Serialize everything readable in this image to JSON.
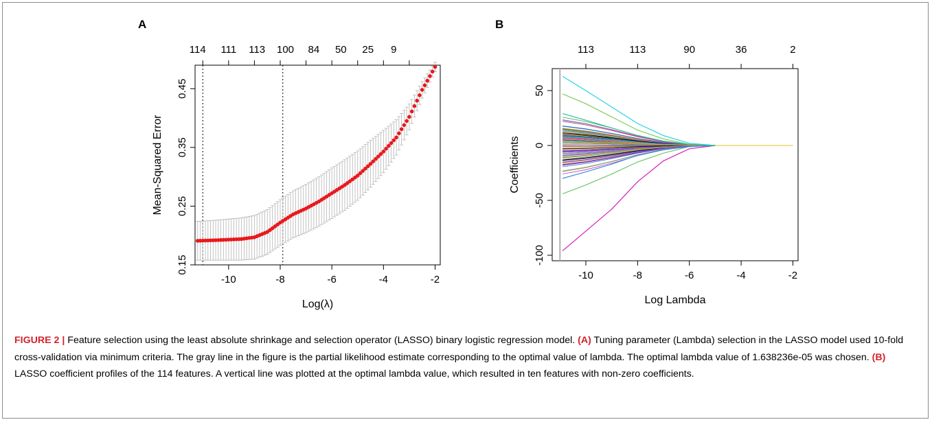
{
  "chart_data": [
    {
      "panel": "A",
      "type": "scatter",
      "xlabel": "Log(λ)",
      "ylabel": "Mean-Squared Error",
      "xlim": [
        -11.3,
        -1.8
      ],
      "ylim": [
        0.15,
        0.49
      ],
      "x_ticks": [
        -10,
        -8,
        -6,
        -4,
        -2
      ],
      "x_tick_labels": [
        "-10",
        "-8",
        "-6",
        "-4",
        "-2"
      ],
      "y_ticks": [
        0.15,
        0.25,
        0.35,
        0.45
      ],
      "y_tick_labels": [
        "0.15",
        "0.25",
        "0.35",
        "0.45"
      ],
      "top_axis_ticks": [
        -11,
        -10,
        -9,
        -8,
        -7,
        -6,
        -5,
        -4,
        -3
      ],
      "top_axis_labels": [
        "114",
        "111",
        "113",
        "100",
        "84",
        "50",
        "25",
        "9"
      ],
      "top_axis_label_x": [
        -11.2,
        -10.0,
        -8.9,
        -7.8,
        -6.7,
        -5.65,
        -4.6,
        -3.6
      ],
      "vlines": [
        -11.0,
        -7.9
      ],
      "points": {
        "x": [
          -11.2,
          -10.5,
          -10.0,
          -9.5,
          -9.0,
          -8.5,
          -8.0,
          -7.5,
          -7.0,
          -6.5,
          -6.0,
          -5.5,
          -5.0,
          -4.5,
          -4.0,
          -3.5,
          -3.0,
          -2.5,
          -2.0
        ],
        "y": [
          0.191,
          0.192,
          0.193,
          0.194,
          0.197,
          0.206,
          0.222,
          0.236,
          0.246,
          0.258,
          0.272,
          0.286,
          0.302,
          0.322,
          0.343,
          0.367,
          0.402,
          0.448,
          0.487
        ]
      },
      "error_half_width": [
        0.033,
        0.034,
        0.035,
        0.036,
        0.037,
        0.038,
        0.039,
        0.04,
        0.041,
        0.042,
        0.043,
        0.043,
        0.042,
        0.04,
        0.036,
        0.03,
        0.022,
        0.014,
        0.008
      ]
    },
    {
      "panel": "B",
      "type": "line",
      "xlabel": "Log Lambda",
      "ylabel": "Coefficients",
      "xlim": [
        -11.3,
        -1.8
      ],
      "ylim": [
        -105,
        70
      ],
      "x_ticks": [
        -10,
        -8,
        -6,
        -4,
        -2
      ],
      "x_tick_labels": [
        "-10",
        "-8",
        "-6",
        "-4",
        "-2"
      ],
      "y_ticks": [
        -100,
        -50,
        0,
        50
      ],
      "y_tick_labels": [
        "-100",
        "-50",
        "0",
        "50"
      ],
      "top_axis_ticks": [
        -10,
        -8,
        -6,
        -4,
        -2
      ],
      "top_axis_labels": [
        "113",
        "113",
        "90",
        "36",
        "2"
      ],
      "vline": -11.0,
      "highlighted_paths": [
        {
          "color": "#22d3e6",
          "x": [
            -10.9,
            -10,
            -9,
            -8,
            -7,
            -6,
            -5
          ],
          "y": [
            63,
            50,
            35,
            20,
            9,
            2,
            0
          ]
        },
        {
          "color": "#7ccd58",
          "x": [
            -10.9,
            -10,
            -9,
            -8,
            -7,
            -6,
            -5
          ],
          "y": [
            47,
            38,
            26,
            14,
            6,
            1,
            0
          ]
        },
        {
          "color": "#d41fb8",
          "x": [
            -10.9,
            -10,
            -9,
            -8,
            -7,
            -6,
            -5
          ],
          "y": [
            -96,
            -78,
            -58,
            -33,
            -14,
            -3,
            0
          ]
        },
        {
          "color": "#6bc56a",
          "x": [
            -10.9,
            -10,
            -9,
            -8,
            -7,
            -6,
            -5
          ],
          "y": [
            -44,
            -36,
            -26,
            -15,
            -7,
            -1,
            0
          ]
        },
        {
          "color": "#3a8be0",
          "x": [
            -10.9,
            -10,
            -9,
            -8,
            -7,
            -6,
            -5
          ],
          "y": [
            -30,
            -24,
            -17,
            -9,
            -4,
            -1,
            0
          ]
        },
        {
          "color": "#2bc08e",
          "x": [
            -10.9,
            -10,
            -9,
            -8,
            -7,
            -6,
            -5
          ],
          "y": [
            29,
            23,
            16,
            9,
            4,
            1,
            0
          ]
        }
      ]
    }
  ],
  "labels": {
    "panel_a": "A",
    "panel_b": "B"
  },
  "caption": {
    "figure_label": "FIGURE 2 |",
    "text_1": " Feature selection using the least absolute shrinkage and selection operator (LASSO) binary logistic regression model. ",
    "label_a": "(A)",
    "text_2": " Tuning parameter (Lambda) selection in the LASSO model used 10-fold cross-validation via minimum criteria. The gray line in the figure is the partial likelihood estimate corresponding to the optimal value of lambda. The optimal lambda value of 1.638236e-05 was chosen. ",
    "label_b": "(B)",
    "text_3": " LASSO coefficient profiles of the 114 features. A vertical line was plotted at the optimal lambda value, which resulted in ten features with non-zero coefficients."
  },
  "colors": {
    "points": "#e8191d",
    "error_bars": "#b3b3b3",
    "dotted_lines": "#000000",
    "vline_b": "#b0b0b0",
    "caption_label": "#d2232a"
  }
}
